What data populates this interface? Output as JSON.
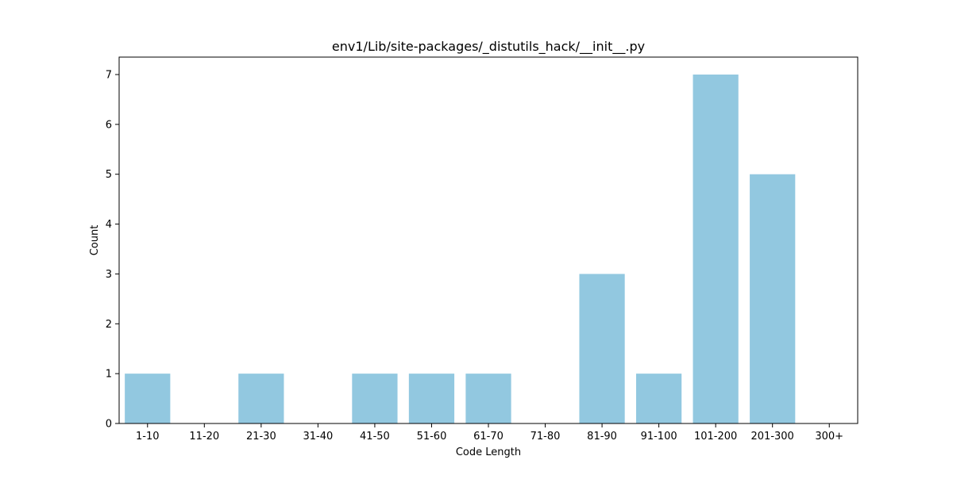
{
  "chart_data": {
    "type": "bar",
    "title": "env1/Lib/site-packages/_distutils_hack/__init__.py",
    "xlabel": "Code Length",
    "ylabel": "Count",
    "categories": [
      "1-10",
      "11-20",
      "21-30",
      "31-40",
      "41-50",
      "51-60",
      "61-70",
      "71-80",
      "81-90",
      "91-100",
      "101-200",
      "201-300",
      "300+"
    ],
    "values": [
      1,
      0,
      1,
      0,
      1,
      1,
      1,
      0,
      3,
      1,
      7,
      5,
      0
    ],
    "yticks": [
      0,
      1,
      2,
      3,
      4,
      5,
      6,
      7
    ],
    "ylim": [
      0,
      7.35
    ],
    "bar_color": "#92c8e0",
    "grid": false,
    "legend": "none"
  }
}
